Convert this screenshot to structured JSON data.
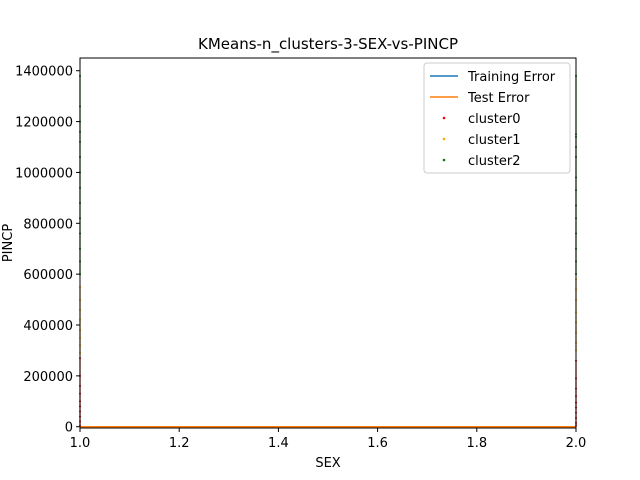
{
  "chart_data": {
    "type": "scatter",
    "title": "KMeans-n_clusters-3-SEX-vs-PINCP",
    "xlabel": "SEX",
    "ylabel": "PINCP",
    "xlim": [
      1.0,
      2.0
    ],
    "ylim": [
      -5000,
      1450000
    ],
    "x_ticks": [
      1.0,
      1.2,
      1.4,
      1.6,
      1.8,
      2.0
    ],
    "x_tick_labels": [
      "1.0",
      "1.2",
      "1.4",
      "1.6",
      "1.8",
      "2.0"
    ],
    "y_ticks": [
      0,
      200000,
      400000,
      600000,
      800000,
      1000000,
      1200000,
      1400000
    ],
    "y_tick_labels": [
      "0",
      "200000",
      "400000",
      "600000",
      "800000",
      "1000000",
      "1200000",
      "1400000"
    ],
    "legend_position": "upper-right",
    "grid": false,
    "series": [
      {
        "name": "Training Error",
        "kind": "line",
        "color": "#1f77b4",
        "x": [
          1.0,
          2.0
        ],
        "y": [
          0,
          0
        ]
      },
      {
        "name": "Test Error",
        "kind": "line",
        "color": "#ff7f0e",
        "x": [
          1.0,
          2.0
        ],
        "y": [
          0,
          0
        ]
      },
      {
        "name": "cluster0",
        "kind": "scatter",
        "color": "#ff0000",
        "x": [
          1,
          1,
          1,
          1,
          1,
          1,
          1,
          1,
          1,
          1,
          2,
          2,
          2,
          2,
          2,
          2,
          2,
          2,
          2,
          2
        ],
        "y": [
          5000,
          20000,
          40000,
          60000,
          80000,
          100000,
          130000,
          160000,
          200000,
          270000,
          5000,
          15000,
          35000,
          55000,
          75000,
          95000,
          120000,
          150000,
          190000,
          260000
        ]
      },
      {
        "name": "cluster1",
        "kind": "scatter",
        "color": "#ffa500",
        "x": [
          1,
          1,
          1,
          1,
          1,
          1,
          1,
          1,
          2,
          2,
          2,
          2,
          2,
          2,
          2,
          2
        ],
        "y": [
          290000,
          320000,
          350000,
          380000,
          420000,
          460000,
          500000,
          550000,
          300000,
          330000,
          370000,
          410000,
          450000,
          500000,
          540000,
          580000
        ]
      },
      {
        "name": "cluster2",
        "kind": "scatter",
        "color": "#008000",
        "x": [
          1,
          1,
          1,
          1,
          1,
          1,
          1,
          1,
          1,
          1,
          1,
          1,
          1,
          1,
          2,
          2,
          2,
          2,
          2,
          2,
          2,
          2,
          2,
          2,
          2,
          2,
          2
        ],
        "y": [
          600000,
          650000,
          700000,
          760000,
          820000,
          880000,
          940000,
          1000000,
          1060000,
          1120000,
          1160000,
          1200000,
          1260000,
          1380000,
          600000,
          650000,
          700000,
          760000,
          820000,
          870000,
          930000,
          980000,
          1060000,
          1100000,
          1140000,
          1150000,
          1380000
        ]
      }
    ]
  }
}
